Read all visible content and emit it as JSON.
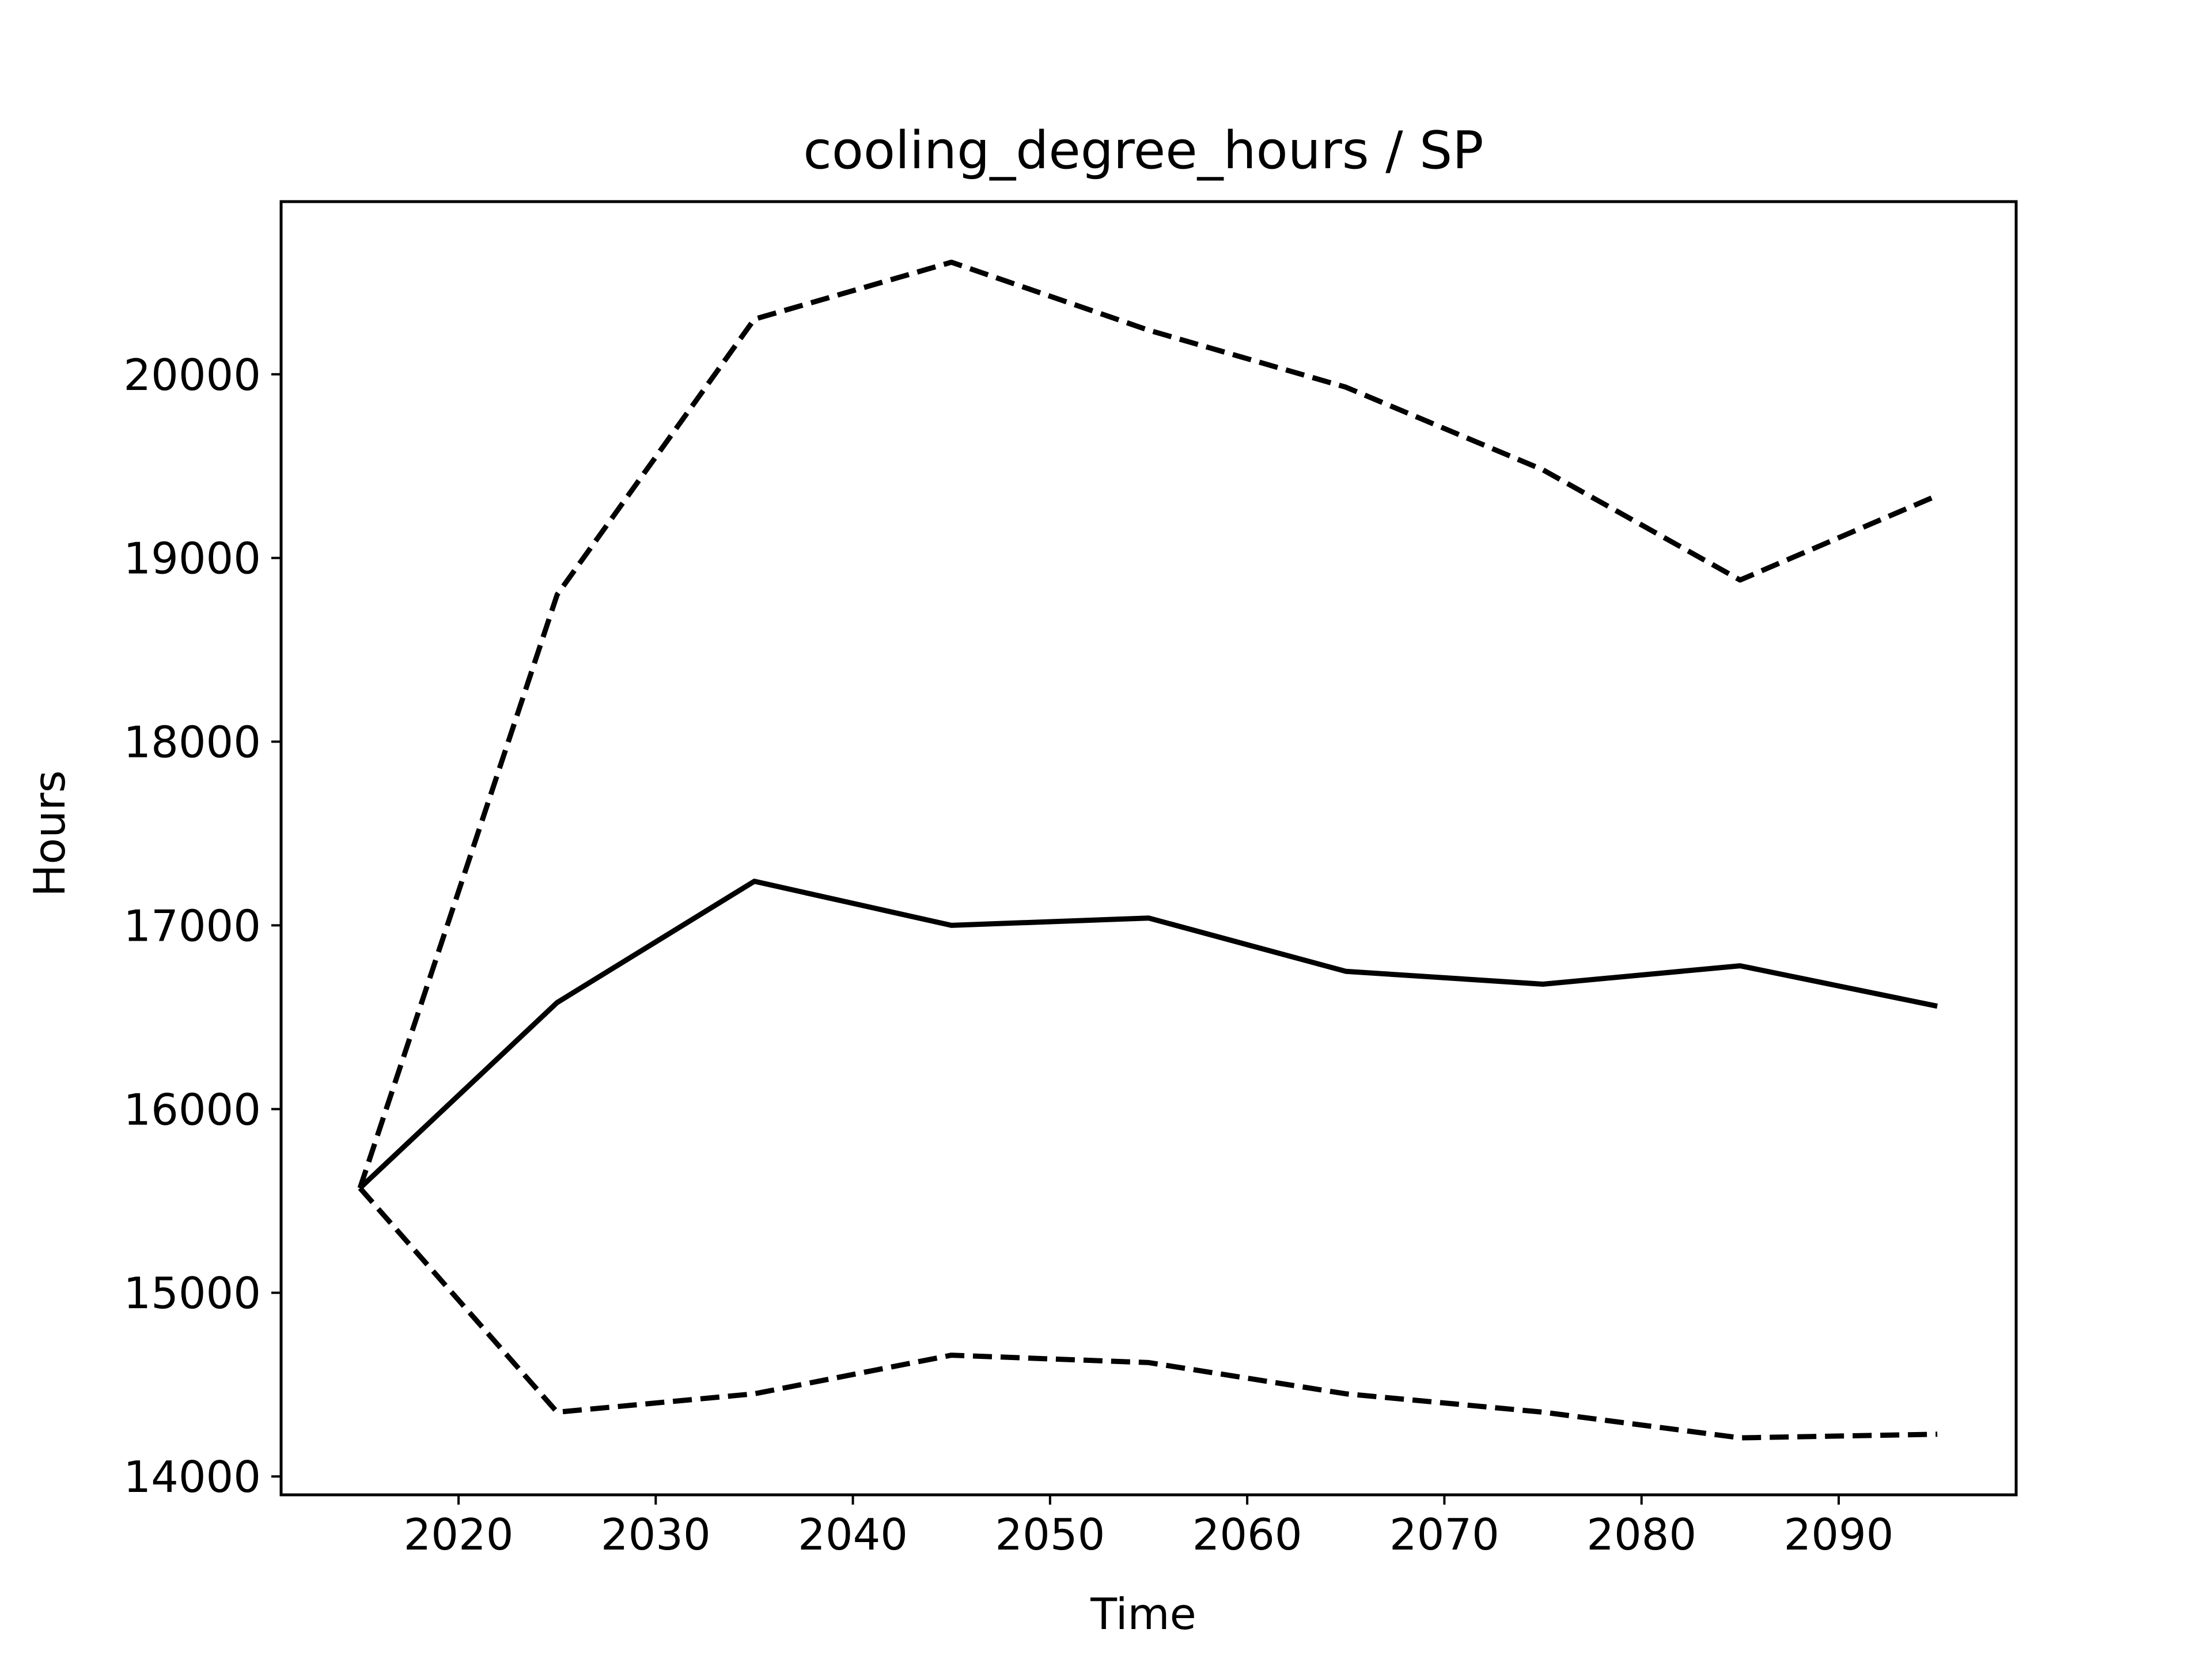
{
  "chart_data": {
    "type": "line",
    "title": "cooling_degree_hours / SP",
    "xlabel": "Time",
    "ylabel": "Hours",
    "xlim": [
      2011,
      2099
    ],
    "ylim": [
      13900,
      20940
    ],
    "xticks": [
      2020,
      2030,
      2040,
      2050,
      2060,
      2070,
      2080,
      2090
    ],
    "yticks": [
      14000,
      15000,
      16000,
      17000,
      18000,
      19000,
      20000
    ],
    "grid": false,
    "legend": "none",
    "x": [
      2015,
      2025,
      2035,
      2045,
      2055,
      2065,
      2075,
      2085,
      2095
    ],
    "series": [
      {
        "style": "dashed",
        "color": "#000000",
        "values": [
          15570,
          18800,
          20300,
          20610,
          20240,
          19930,
          19480,
          18880,
          19340
        ]
      },
      {
        "style": "solid",
        "color": "#000000",
        "values": [
          15570,
          16580,
          17240,
          17000,
          17040,
          16750,
          16680,
          16780,
          16560
        ]
      },
      {
        "style": "dashed",
        "color": "#000000",
        "values": [
          15570,
          14350,
          14450,
          14660,
          14620,
          14450,
          14350,
          14210,
          14230
        ]
      }
    ]
  }
}
